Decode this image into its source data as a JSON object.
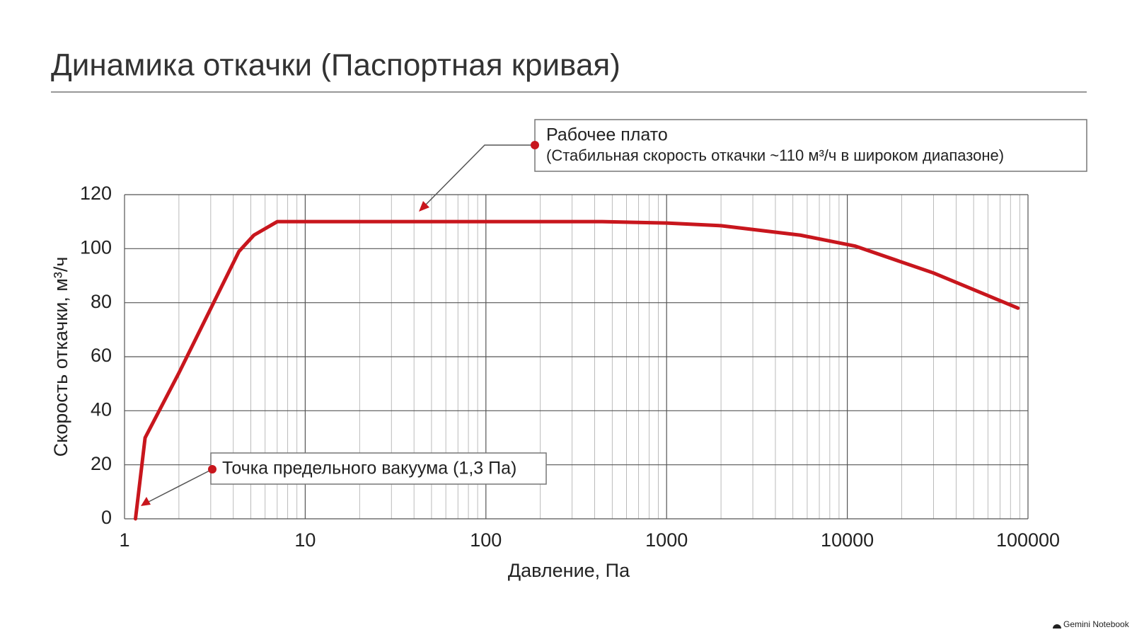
{
  "chart_data": {
    "type": "line",
    "title": "Динамика откачки (Паспортная кривая)",
    "x_label": "Давление, Па",
    "y_label": "Скорость откачки, м³/ч",
    "log_x": true,
    "grid": true,
    "minor_grid": true,
    "xlim": [
      1,
      100000
    ],
    "xticks": [
      1,
      10,
      100,
      1000,
      10000,
      100000
    ],
    "ylim": [
      0,
      120
    ],
    "yticks": [
      0,
      20,
      40,
      60,
      80,
      100,
      120
    ],
    "series": [
      {
        "color": "#c8161d",
        "x": [
          1.15,
          1.3,
          2,
          4.3,
          5.2,
          7,
          440,
          1000,
          2000,
          5500,
          11000,
          30000,
          88000
        ],
        "values": [
          0,
          30,
          54,
          99,
          105,
          110,
          110,
          109.5,
          108.5,
          105,
          101,
          91,
          78
        ]
      }
    ],
    "annotations": [
      {
        "lines": [
          "Рабочее плато",
          "(Стабильная скорость откачки ~110 м³/ч в широком диапазоне)"
        ]
      },
      {
        "lines": [
          "Точка предельного вакуума (1,3 Па)"
        ]
      }
    ],
    "watermark": "Gemini Notebook"
  }
}
